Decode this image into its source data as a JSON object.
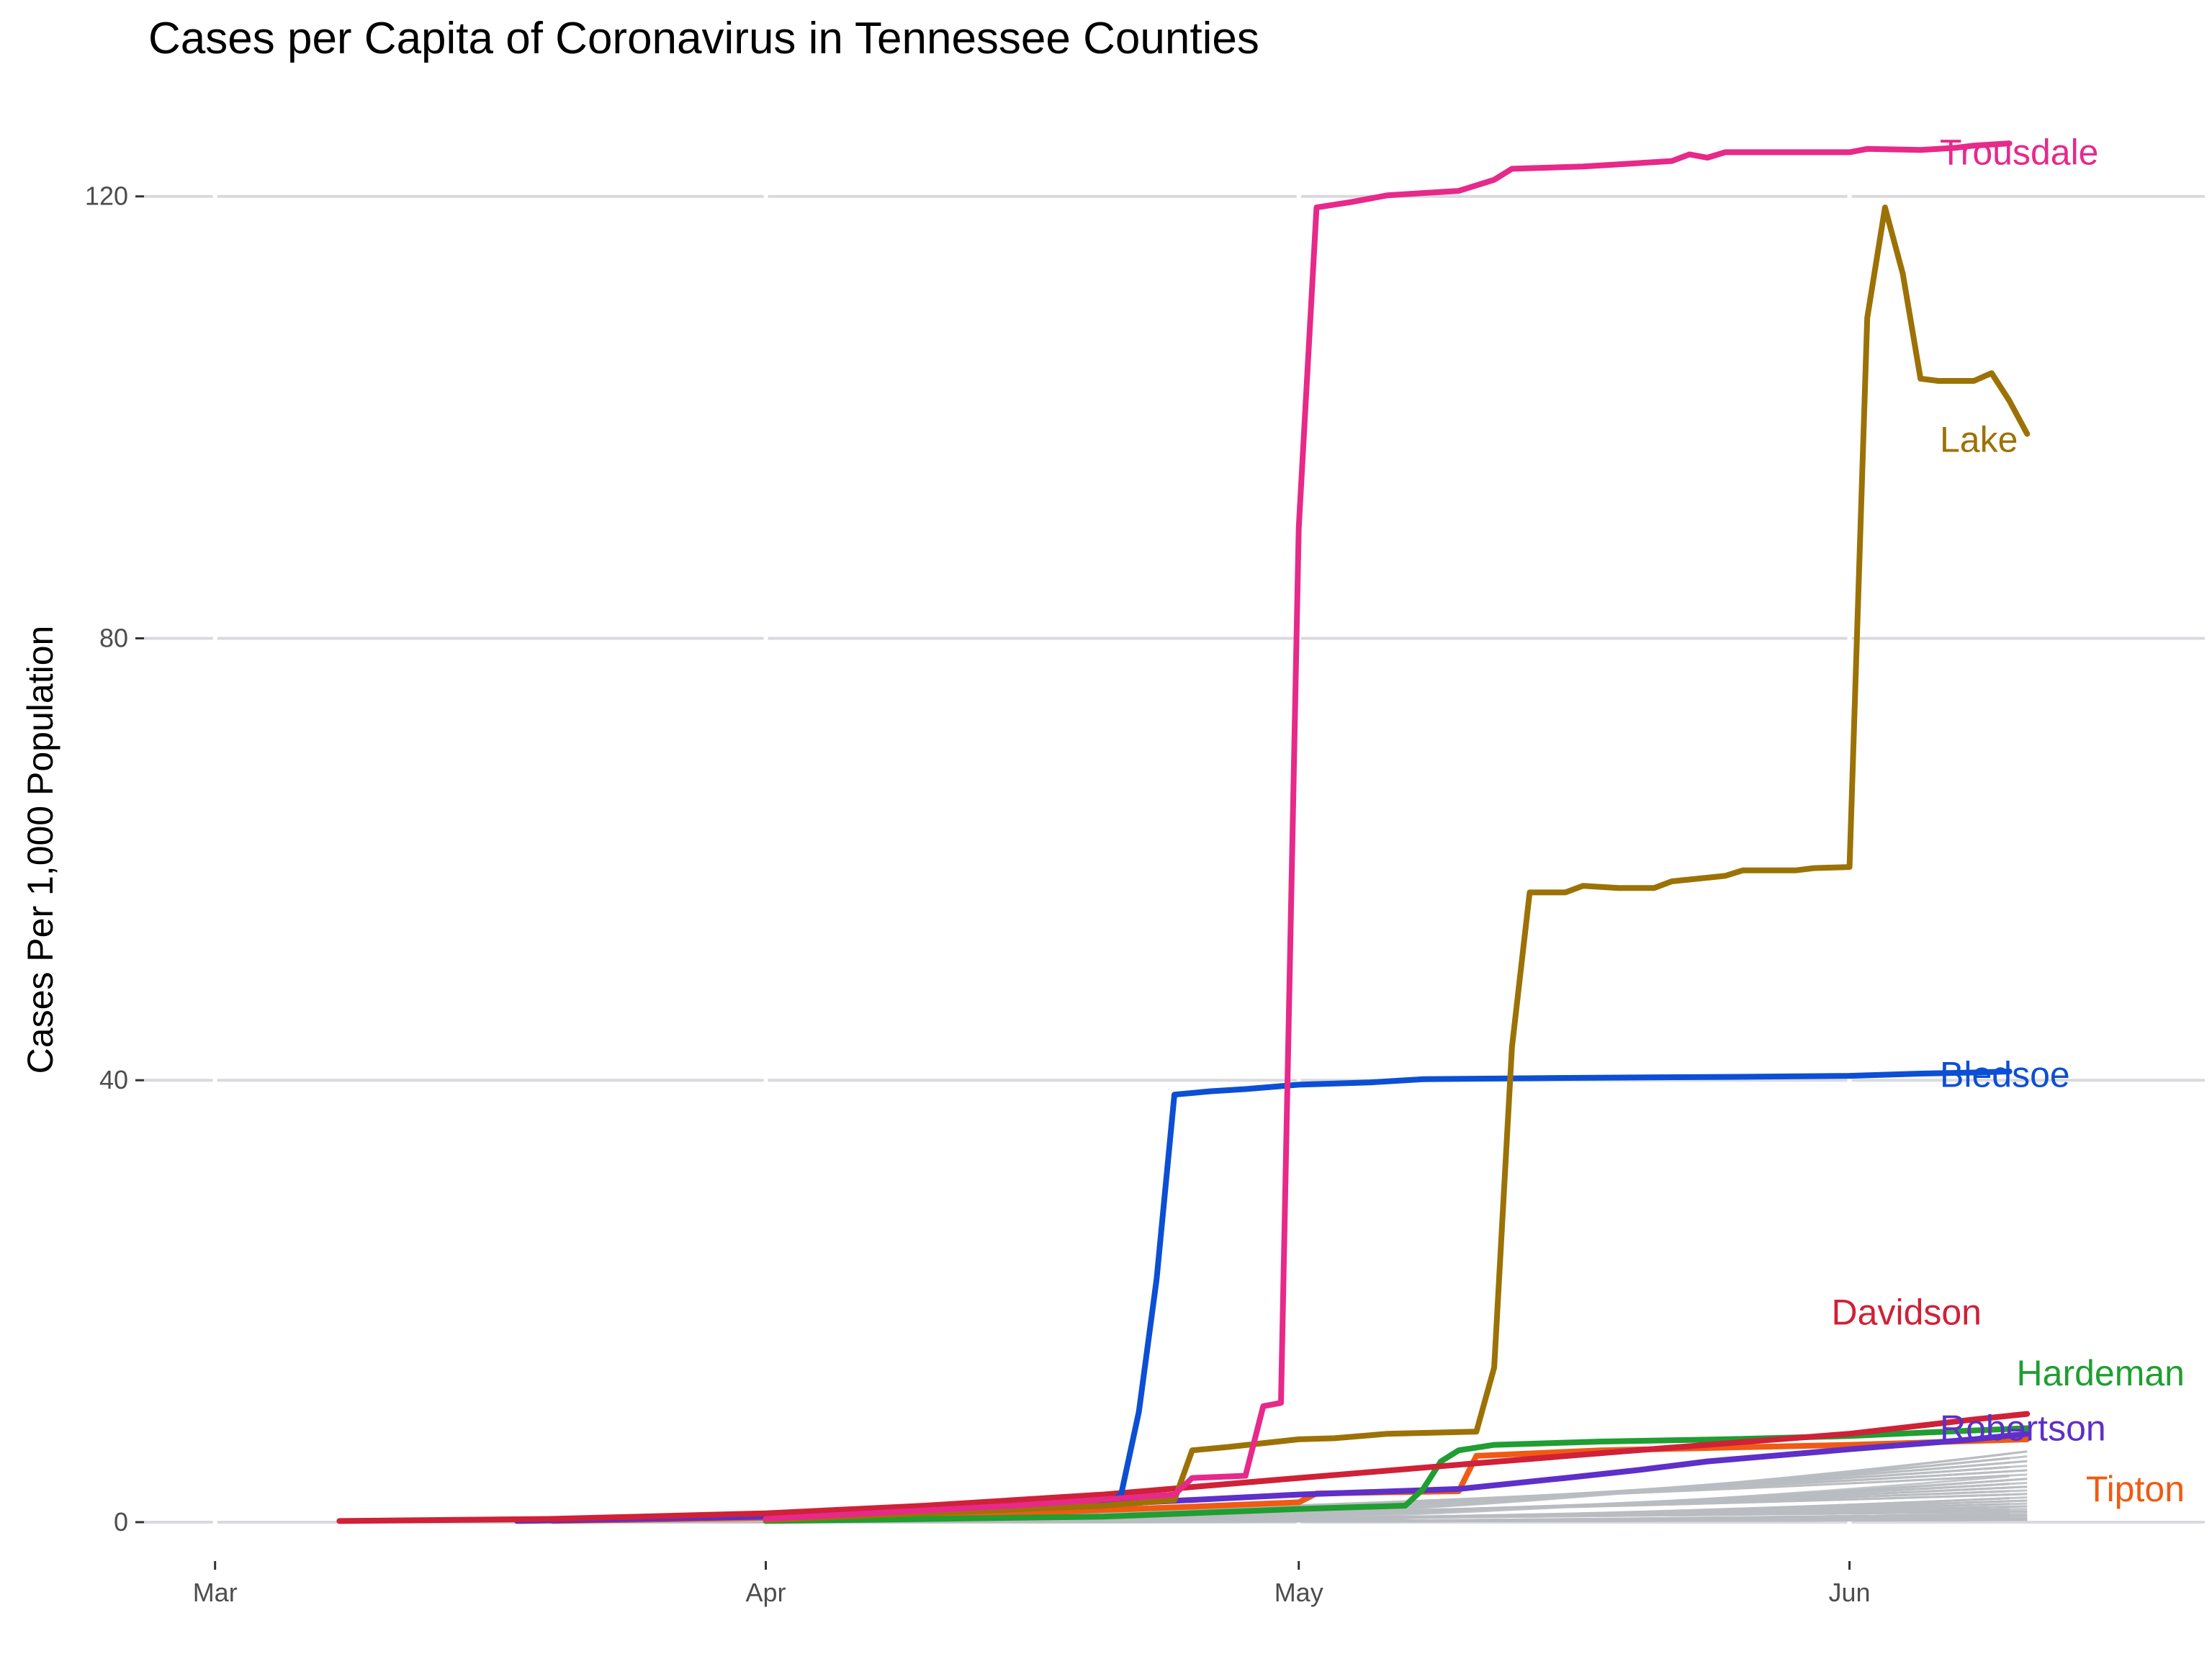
{
  "chart_data": {
    "type": "line",
    "title": "Cases per Capita of Coronavirus in Tennessee Counties",
    "ylabel": "Cases Per 1,000 Population",
    "xlabel": "",
    "ylim": [
      -3,
      128
    ],
    "xlim": [
      "2020-02-26",
      "2020-06-21"
    ],
    "grid": true,
    "y_ticks": [
      0,
      40,
      80,
      120
    ],
    "x_ticks": [
      {
        "date": "2020-03-01",
        "label": "Mar"
      },
      {
        "date": "2020-04-01",
        "label": "Apr"
      },
      {
        "date": "2020-05-01",
        "label": "May"
      },
      {
        "date": "2020-06-01",
        "label": "Jun"
      }
    ],
    "background_series_color": "#b8bcc0",
    "series": [
      {
        "name": "Trousdale",
        "color": "#e7298a",
        "label_value": 124,
        "points": [
          [
            "2020-04-01",
            0.3
          ],
          [
            "2020-04-15",
            1.5
          ],
          [
            "2020-04-24",
            2.5
          ],
          [
            "2020-04-25",
            4
          ],
          [
            "2020-04-28",
            4.2
          ],
          [
            "2020-04-29",
            10.5
          ],
          [
            "2020-04-30",
            10.8
          ],
          [
            "2020-05-01",
            90
          ],
          [
            "2020-05-02",
            119
          ],
          [
            "2020-05-04",
            119.5
          ],
          [
            "2020-05-06",
            120.1
          ],
          [
            "2020-05-08",
            120.3
          ],
          [
            "2020-05-10",
            120.5
          ],
          [
            "2020-05-11",
            121
          ],
          [
            "2020-05-12",
            121.5
          ],
          [
            "2020-05-13",
            122.5
          ],
          [
            "2020-05-17",
            122.7
          ],
          [
            "2020-05-20",
            123
          ],
          [
            "2020-05-22",
            123.2
          ],
          [
            "2020-05-23",
            123.8
          ],
          [
            "2020-05-24",
            123.5
          ],
          [
            "2020-05-25",
            124
          ],
          [
            "2020-05-30",
            124
          ],
          [
            "2020-06-01",
            124
          ],
          [
            "2020-06-02",
            124.3
          ],
          [
            "2020-06-05",
            124.2
          ],
          [
            "2020-06-07",
            124.4
          ],
          [
            "2020-06-08",
            124.6
          ],
          [
            "2020-06-10",
            124.8
          ]
        ]
      },
      {
        "name": "Lake",
        "color": "#9c7206",
        "label_value": 98,
        "points": [
          [
            "2020-04-01",
            0.2
          ],
          [
            "2020-04-20",
            1.5
          ],
          [
            "2020-04-24",
            2
          ],
          [
            "2020-04-25",
            6.5
          ],
          [
            "2020-04-27",
            6.8
          ],
          [
            "2020-05-01",
            7.5
          ],
          [
            "2020-05-03",
            7.6
          ],
          [
            "2020-05-06",
            8
          ],
          [
            "2020-05-11",
            8.2
          ],
          [
            "2020-05-12",
            14
          ],
          [
            "2020-05-13",
            43
          ],
          [
            "2020-05-14",
            57
          ],
          [
            "2020-05-16",
            57
          ],
          [
            "2020-05-17",
            57.6
          ],
          [
            "2020-05-19",
            57.4
          ],
          [
            "2020-05-21",
            57.4
          ],
          [
            "2020-05-22",
            58
          ],
          [
            "2020-05-25",
            58.5
          ],
          [
            "2020-05-26",
            59
          ],
          [
            "2020-05-29",
            59
          ],
          [
            "2020-05-30",
            59.2
          ],
          [
            "2020-06-01",
            59.3
          ],
          [
            "2020-06-02",
            109
          ],
          [
            "2020-06-03",
            119
          ],
          [
            "2020-06-04",
            113
          ],
          [
            "2020-06-05",
            103.5
          ],
          [
            "2020-06-06",
            103.3
          ],
          [
            "2020-06-08",
            103.3
          ],
          [
            "2020-06-09",
            104
          ],
          [
            "2020-06-10",
            101.5
          ],
          [
            "2020-06-11",
            98.5
          ]
        ]
      },
      {
        "name": "Bledsoe",
        "color": "#0c4fd4",
        "label_value": 40.5,
        "points": [
          [
            "2020-04-01",
            0.3
          ],
          [
            "2020-04-20",
            1.5
          ],
          [
            "2020-04-21",
            2.5
          ],
          [
            "2020-04-22",
            10
          ],
          [
            "2020-04-23",
            22
          ],
          [
            "2020-04-24",
            38.7
          ],
          [
            "2020-04-26",
            39
          ],
          [
            "2020-04-28",
            39.2
          ],
          [
            "2020-05-01",
            39.6
          ],
          [
            "2020-05-05",
            39.8
          ],
          [
            "2020-05-08",
            40.1
          ],
          [
            "2020-05-15",
            40.2
          ],
          [
            "2020-05-25",
            40.3
          ],
          [
            "2020-06-01",
            40.4
          ],
          [
            "2020-06-05",
            40.6
          ],
          [
            "2020-06-08",
            40.7
          ],
          [
            "2020-06-10",
            40.8
          ]
        ]
      },
      {
        "name": "Davidson",
        "color": "#cf2137",
        "label_value": 19,
        "points": [
          [
            "2020-03-08",
            0.1
          ],
          [
            "2020-03-20",
            0.3
          ],
          [
            "2020-04-01",
            0.8
          ],
          [
            "2020-04-10",
            1.5
          ],
          [
            "2020-04-20",
            2.5
          ],
          [
            "2020-05-01",
            4
          ],
          [
            "2020-05-10",
            5.2
          ],
          [
            "2020-05-20",
            6.5
          ],
          [
            "2020-06-01",
            8
          ],
          [
            "2020-06-08",
            9.3
          ],
          [
            "2020-06-11",
            9.8
          ]
        ]
      },
      {
        "name": "Hardeman",
        "color": "#1f9e31",
        "label_value": 13.5,
        "points": [
          [
            "2020-04-01",
            0.1
          ],
          [
            "2020-04-20",
            0.5
          ],
          [
            "2020-05-01",
            1.2
          ],
          [
            "2020-05-07",
            1.5
          ],
          [
            "2020-05-08",
            3
          ],
          [
            "2020-05-09",
            5.5
          ],
          [
            "2020-05-10",
            6.5
          ],
          [
            "2020-05-12",
            7
          ],
          [
            "2020-05-18",
            7.3
          ],
          [
            "2020-05-25",
            7.5
          ],
          [
            "2020-06-01",
            7.8
          ],
          [
            "2020-06-05",
            8.1
          ],
          [
            "2020-06-11",
            8.5
          ]
        ]
      },
      {
        "name": "Robertson",
        "color": "#5e2fc9",
        "label_value": 8.5,
        "points": [
          [
            "2020-03-18",
            0.1
          ],
          [
            "2020-04-01",
            0.5
          ],
          [
            "2020-04-15",
            1.2
          ],
          [
            "2020-05-01",
            2.5
          ],
          [
            "2020-05-10",
            3
          ],
          [
            "2020-05-16",
            4
          ],
          [
            "2020-05-20",
            4.7
          ],
          [
            "2020-05-24",
            5.5
          ],
          [
            "2020-06-01",
            6.6
          ],
          [
            "2020-06-08",
            7.5
          ],
          [
            "2020-06-11",
            8
          ]
        ]
      },
      {
        "name": "Tipton",
        "color": "#f05a13",
        "label_value": 3,
        "points": [
          [
            "2020-03-20",
            0.1
          ],
          [
            "2020-04-01",
            0.4
          ],
          [
            "2020-04-15",
            0.8
          ],
          [
            "2020-04-25",
            1.4
          ],
          [
            "2020-05-01",
            1.8
          ],
          [
            "2020-05-02",
            2.6
          ],
          [
            "2020-05-10",
            2.8
          ],
          [
            "2020-05-11",
            6
          ],
          [
            "2020-05-18",
            6.5
          ],
          [
            "2020-06-01",
            7
          ],
          [
            "2020-06-11",
            7.5
          ]
        ]
      }
    ]
  }
}
